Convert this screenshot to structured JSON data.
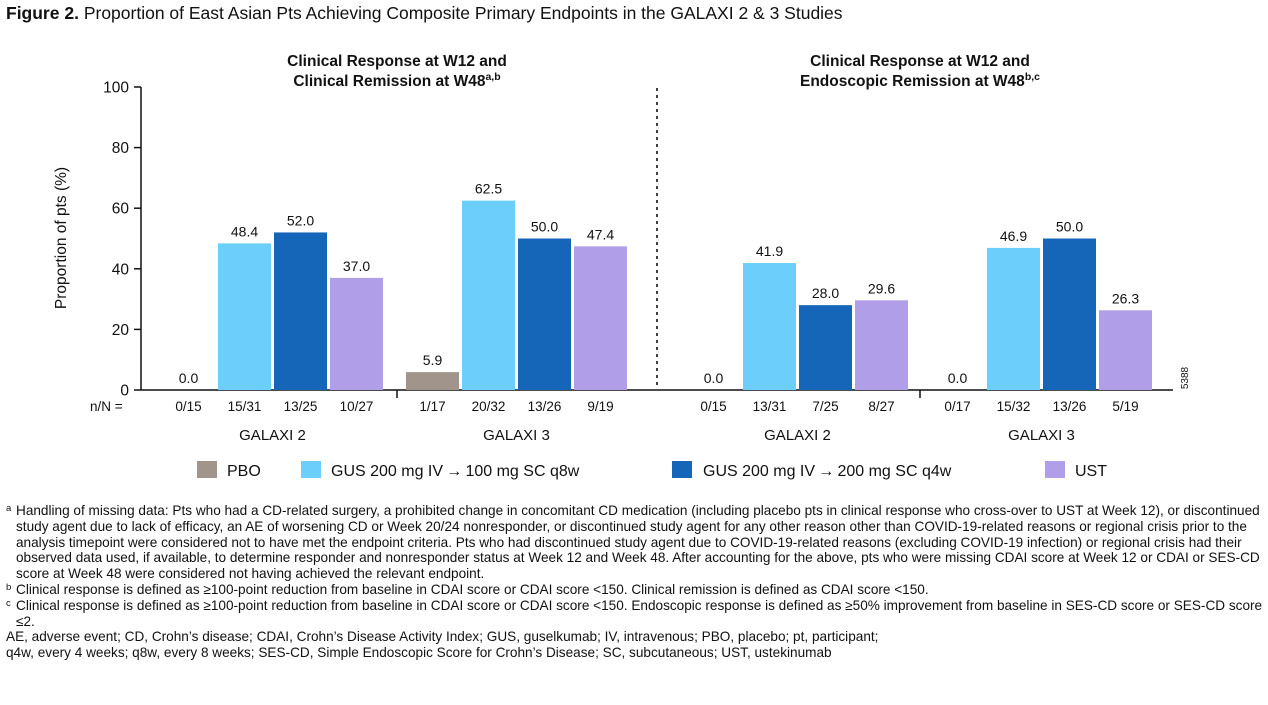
{
  "figure": {
    "label": "Figure 2.",
    "title": "Proportion of East Asian Pts Achieving Composite Primary Endpoints in the GALAXI 2 & 3 Studies",
    "code": "5388"
  },
  "chart_data": {
    "type": "bar",
    "ylabel": "Proportion of pts (%)",
    "ylim": [
      0,
      100
    ],
    "yticks": [
      0,
      20,
      40,
      60,
      80,
      100
    ],
    "nn_prefix": "n/N =",
    "series_names": [
      "PBO",
      "GUS 200 mg IV → 100 mg SC q8w",
      "GUS 200 mg IV → 200 mg SC q4w",
      "UST"
    ],
    "series_colors": [
      "#a0948b",
      "#6ccffb",
      "#1566b8",
      "#b09ee8"
    ],
    "panels": [
      {
        "title_line1": "Clinical Response at W12 and",
        "title_line2": "Clinical Remission at W48",
        "title_sup": "a,b",
        "groups": [
          {
            "study": "GALAXI 2",
            "values": [
              0.0,
              48.4,
              52.0,
              37.0
            ],
            "labels": [
              "0.0",
              "48.4",
              "52.0",
              "37.0"
            ],
            "nn": [
              "0/15",
              "15/31",
              "13/25",
              "10/27"
            ]
          },
          {
            "study": "GALAXI 3",
            "values": [
              5.9,
              62.5,
              50.0,
              47.4
            ],
            "labels": [
              "5.9",
              "62.5",
              "50.0",
              "47.4"
            ],
            "nn": [
              "1/17",
              "20/32",
              "13/26",
              "9/19"
            ]
          }
        ]
      },
      {
        "title_line1": "Clinical Response at W12 and",
        "title_line2": "Endoscopic Remission at W48",
        "title_sup": "b,c",
        "groups": [
          {
            "study": "GALAXI 2",
            "values": [
              0.0,
              41.9,
              28.0,
              29.6
            ],
            "labels": [
              "0.0",
              "41.9",
              "28.0",
              "29.6"
            ],
            "nn": [
              "0/15",
              "13/31",
              "7/25",
              "8/27"
            ]
          },
          {
            "study": "GALAXI 3",
            "values": [
              0.0,
              46.9,
              50.0,
              26.3
            ],
            "labels": [
              "0.0",
              "46.9",
              "50.0",
              "26.3"
            ],
            "nn": [
              "0/17",
              "15/32",
              "13/26",
              "5/19"
            ]
          }
        ]
      }
    ]
  },
  "footnotes": [
    {
      "mark": "a",
      "text": "Handling of missing data: Pts who had a CD-related surgery, a prohibited change in concomitant CD medication (including placebo pts in clinical response who cross-over to UST at Week 12), or discontinued study agent due to lack of efficacy, an AE of worsening CD or Week 20/24 nonresponder, or discontinued study agent for any other reason other than COVID-19-related reasons or regional crisis prior to the analysis timepoint were considered not to have met the endpoint criteria. Pts who had discontinued study agent due to COVID-19-related reasons (excluding COVID-19 infection) or regional crisis had their observed data used, if available, to determine responder and nonresponder status at Week 12 and Week 48. After accounting for the above, pts who were missing CDAI score at Week 12 or CDAI or SES-CD score at Week 48 were considered not having achieved the relevant endpoint."
    },
    {
      "mark": "b",
      "text": "Clinical response is defined as ≥100-point reduction from baseline in CDAI score or CDAI score <150. Clinical remission is defined as CDAI score <150."
    },
    {
      "mark": "c",
      "text": "Clinical response is defined as ≥100-point reduction from baseline in CDAI score or CDAI score <150. Endoscopic response is defined as ≥50% improvement from baseline in SES-CD score or SES-CD score ≤2."
    }
  ],
  "abbreviations": {
    "line1": "AE, adverse event; CD, Crohn’s disease; CDAI, Crohn’s Disease Activity Index; GUS, guselkumab; IV, intravenous; PBO, placebo; pt, participant;",
    "line2": "q4w, every 4 weeks; q8w, every 8 weeks; SES-CD, Simple Endoscopic Score for Crohn’s Disease; SC, subcutaneous; UST, ustekinumab"
  }
}
